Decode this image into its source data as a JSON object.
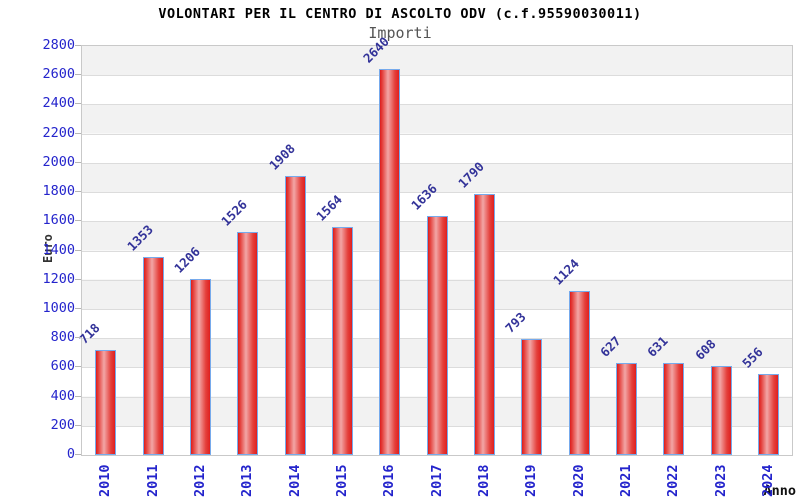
{
  "chart_data": {
    "type": "bar",
    "title": "VOLONTARI PER IL CENTRO DI ASCOLTO ODV (c.f.95590030011)",
    "subtitle": "Importi",
    "xlabel": "Anno",
    "ylabel": "Euro",
    "categories": [
      "2010",
      "2011",
      "2012",
      "2013",
      "2014",
      "2015",
      "2016",
      "2017",
      "2018",
      "2019",
      "2020",
      "2021",
      "2022",
      "2023",
      "2024"
    ],
    "values": [
      718,
      1353,
      1206,
      1526,
      1908,
      1564,
      2640,
      1636,
      1790,
      793,
      1124,
      627,
      631,
      608,
      556
    ],
    "ylim": [
      0,
      2800
    ],
    "ytick_step": 200,
    "legend": null,
    "grid": "horizontal-bands",
    "style": {
      "band_color": "#f2f2f2",
      "band_alt_color": "#ffffff",
      "gridline_color": "#dcdcdc",
      "axis_border_color": "#c9c9c9",
      "tick_label_color": "#2424cc",
      "value_label_color": "#333399",
      "bar_fill_color": "#e01f1f",
      "bar_highlight_color": "#f2a6a6",
      "bar_border_color": "#76aaec",
      "title_color": "#000000",
      "subtitle_color": "#555555",
      "axis_title_color": "#333333"
    }
  }
}
